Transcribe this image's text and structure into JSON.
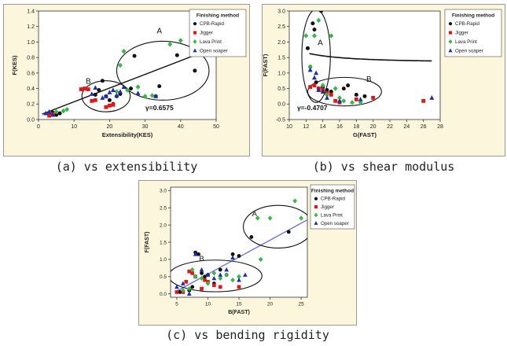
{
  "colors": {
    "panel_bg": "#fcf6dd",
    "plot_bg": "#ffffff",
    "cpb": "#111111",
    "jigger": "#dd1a1a",
    "lava": "#39b54a",
    "open": "#1f2fa8",
    "fit_line": "#111111",
    "fit_line_c": "#6f74d6"
  },
  "captions": [
    "(a) vs extensibility",
    "(b) vs shear modulus",
    "(c) vs bending rigidity"
  ],
  "legend": {
    "title": "Finishing method",
    "entries": [
      {
        "label": "CPB-Rapid",
        "color": "#111111",
        "marker": "circle"
      },
      {
        "label": "Jigger",
        "color": "#dd1a1a",
        "marker": "square"
      },
      {
        "label": "Lava Print",
        "color": "#39b54a",
        "marker": "diamond"
      },
      {
        "label": "Open soaper",
        "color": "#1f2fa8",
        "marker": "triangle"
      }
    ]
  },
  "chart_data": [
    {
      "type": "scatter",
      "xlabel": "Extensibility(KES)",
      "ylabel": "F(KES)",
      "xlim": [
        0,
        50
      ],
      "ylim": [
        0,
        1.4
      ],
      "xticks": [
        0,
        10,
        20,
        30,
        40,
        50
      ],
      "yticks": [
        0,
        0.2,
        0.4,
        0.6,
        0.8,
        1.0,
        1.2,
        1.4
      ],
      "ytick_labels": [
        "0.0",
        "0.2",
        "0.4",
        "0.6",
        "0.8",
        "1.0",
        "1.2",
        "1.4"
      ],
      "correlation_label": "γ=0.6575",
      "fit": {
        "kind": "linear",
        "x0": 1,
        "y0": 0.07,
        "x1": 48,
        "y1": 0.9
      },
      "groups": [
        {
          "label": "A",
          "cx": 35,
          "cy": 0.63,
          "rx": 13,
          "ry": 0.38,
          "lx": 34,
          "ly": 1.11
        },
        {
          "label": "B",
          "cx": 19,
          "cy": 0.3,
          "rx": 6.8,
          "ry": 0.2,
          "lx": 14,
          "ly": 0.46
        }
      ],
      "series": [
        {
          "name": "CPB-Rapid",
          "marker": "circle",
          "color": "#111111",
          "points": [
            [
              3,
              0.07
            ],
            [
              4,
              0.09
            ],
            [
              5,
              0.06
            ],
            [
              6,
              0.08
            ],
            [
              16,
              0.32
            ],
            [
              17,
              0.38
            ],
            [
              18,
              0.5
            ],
            [
              19,
              0.3
            ],
            [
              20,
              0.25
            ],
            [
              21,
              0.2
            ],
            [
              22,
              0.3
            ],
            [
              23,
              0.33
            ],
            [
              26,
              0.4
            ],
            [
              27,
              0.82
            ],
            [
              33,
              0.3
            ],
            [
              34,
              0.43
            ],
            [
              39,
              0.83
            ],
            [
              44,
              0.63
            ]
          ]
        },
        {
          "name": "Jigger",
          "marker": "square",
          "color": "#dd1a1a",
          "points": [
            [
              3,
              0.05
            ],
            [
              4,
              0.07
            ],
            [
              12,
              0.39
            ],
            [
              13,
              0.4
            ],
            [
              14,
              0.39
            ],
            [
              15,
              0.24
            ],
            [
              16,
              0.25
            ],
            [
              19,
              0.16
            ],
            [
              20,
              0.18
            ],
            [
              21,
              0.19
            ]
          ]
        },
        {
          "name": "Lava Print",
          "marker": "diamond",
          "color": "#39b54a",
          "points": [
            [
              5,
              0.1
            ],
            [
              7,
              0.11
            ],
            [
              8,
              0.13
            ],
            [
              22,
              0.36
            ],
            [
              23,
              0.7
            ],
            [
              24,
              0.88
            ],
            [
              25,
              0.38
            ],
            [
              28,
              0.42
            ],
            [
              30,
              0.3
            ],
            [
              32,
              0.31
            ],
            [
              37,
              0.97
            ],
            [
              40,
              1.02
            ],
            [
              43,
              0.85
            ]
          ]
        },
        {
          "name": "Open soaper",
          "marker": "triangle",
          "color": "#1f2fa8",
          "points": [
            [
              2,
              0.08
            ],
            [
              3,
              0.1
            ],
            [
              4,
              0.06
            ],
            [
              15,
              0.33
            ],
            [
              16,
              0.41
            ],
            [
              18,
              0.28
            ],
            [
              19,
              0.3
            ],
            [
              20,
              0.35
            ],
            [
              21,
              0.38
            ],
            [
              22,
              0.31
            ],
            [
              23,
              0.36
            ],
            [
              24,
              0.42
            ],
            [
              28,
              0.34
            ],
            [
              33,
              0.3
            ]
          ]
        }
      ]
    },
    {
      "type": "scatter",
      "xlabel": "G(FAST)",
      "ylabel": "F(FAST)",
      "xlim": [
        10,
        28
      ],
      "ylim": [
        -0.5,
        3.0
      ],
      "xticks": [
        10,
        12,
        14,
        16,
        18,
        20,
        22,
        24,
        26,
        28
      ],
      "yticks": [
        -0.5,
        0,
        0.5,
        1.0,
        1.5,
        2.0,
        2.5,
        3.0
      ],
      "ytick_labels": [
        "-0.5",
        "0.0",
        "0.5",
        "1.0",
        "1.5",
        "2.0",
        "2.5",
        "3.0"
      ],
      "correlation_label": "γ=-0.4707",
      "fit": {
        "kind": "power",
        "a": 1.5,
        "b": 150,
        "c": 2.5,
        "c0": -0.15,
        "x_from": 12.4,
        "x_to": 27
      },
      "groups": [
        {
          "label": "A",
          "cx": 13.2,
          "cy": 1.55,
          "rx": 1.7,
          "ry": 1.5,
          "lx": 13.7,
          "ly": 1.9
        },
        {
          "label": "B",
          "cx": 16.6,
          "cy": 0.4,
          "rx": 4.4,
          "ry": 0.46,
          "lx": 19.5,
          "ly": 0.72
        }
      ],
      "series": [
        {
          "name": "CPB-Rapid",
          "marker": "circle",
          "color": "#111111",
          "points": [
            [
              12.2,
              1.8
            ],
            [
              12.5,
              1.2
            ],
            [
              12.8,
              2.6
            ],
            [
              13.0,
              2.4
            ],
            [
              13.2,
              0.7
            ],
            [
              13.5,
              0.5
            ],
            [
              13.8,
              3.0
            ],
            [
              14.0,
              0.55
            ],
            [
              14.5,
              0.45
            ],
            [
              15.0,
              0.4
            ],
            [
              16.5,
              0.5
            ],
            [
              17.0,
              0.6
            ],
            [
              18.0,
              0.3
            ],
            [
              19.0,
              0.25
            ]
          ]
        },
        {
          "name": "Jigger",
          "marker": "square",
          "color": "#dd1a1a",
          "points": [
            [
              12.5,
              0.55
            ],
            [
              13.0,
              0.6
            ],
            [
              13.5,
              0.5
            ],
            [
              14.0,
              0.45
            ],
            [
              14.5,
              0.35
            ],
            [
              15.0,
              0.3
            ],
            [
              15.5,
              0.1
            ],
            [
              16.0,
              0.05
            ],
            [
              18.0,
              0.15
            ],
            [
              20.0,
              0.2
            ],
            [
              26.0,
              0.1
            ]
          ]
        },
        {
          "name": "Lava Print",
          "marker": "diamond",
          "color": "#39b54a",
          "points": [
            [
              12.0,
              2.2
            ],
            [
              12.5,
              1.2
            ],
            [
              13.0,
              2.2
            ],
            [
              13.5,
              2.7
            ],
            [
              14.0,
              0.6
            ],
            [
              14.5,
              0.3
            ],
            [
              15.0,
              2.2
            ],
            [
              15.5,
              0.5
            ],
            [
              16.0,
              0.2
            ],
            [
              16.5,
              0.1
            ],
            [
              17.5,
              0.05
            ],
            [
              18.5,
              0.05
            ]
          ]
        },
        {
          "name": "Open soaper",
          "marker": "triangle",
          "color": "#1f2fa8",
          "points": [
            [
              12.5,
              1.1
            ],
            [
              13.0,
              0.85
            ],
            [
              13.2,
              1.0
            ],
            [
              13.5,
              0.45
            ],
            [
              14.0,
              0.4
            ],
            [
              14.5,
              0.2
            ],
            [
              16.0,
              0.1
            ],
            [
              18.5,
              0.15
            ],
            [
              27.0,
              0.2
            ]
          ]
        }
      ]
    },
    {
      "type": "scatter",
      "xlabel": "B(FAST)",
      "ylabel": "F(FAST)",
      "xlim": [
        4,
        26
      ],
      "ylim": [
        -0.1,
        3.1
      ],
      "xticks": [
        5,
        10,
        15,
        20,
        25
      ],
      "yticks": [
        0,
        0.5,
        1.0,
        1.5,
        2.0,
        2.5,
        3.0
      ],
      "ytick_labels": [
        "0.0",
        "0.5",
        "1.0",
        "1.5",
        "2.0",
        "2.5",
        "3.0"
      ],
      "correlation_label": "",
      "fit": {
        "kind": "linear",
        "x0": 5,
        "y0": 0.08,
        "x1": 26,
        "y1": 2.15
      },
      "groups": [
        {
          "label": "A",
          "cx": 21.3,
          "cy": 1.95,
          "rx": 5.6,
          "ry": 0.62,
          "lx": 17.5,
          "ly": 2.25
        },
        {
          "label": "B",
          "cx": 11.2,
          "cy": 0.52,
          "rx": 7.5,
          "ry": 0.46,
          "lx": 9.0,
          "ly": 0.95
        }
      ],
      "series": [
        {
          "name": "CPB-Rapid",
          "marker": "circle",
          "color": "#111111",
          "points": [
            [
              5.5,
              0.05
            ],
            [
              7,
              0.1
            ],
            [
              7.5,
              0.2
            ],
            [
              8,
              1.2
            ],
            [
              8.5,
              1.15
            ],
            [
              9,
              0.6
            ],
            [
              9.5,
              0.5
            ],
            [
              10,
              0.55
            ],
            [
              11,
              0.3
            ],
            [
              12,
              0.7
            ],
            [
              13,
              0.55
            ],
            [
              14,
              1.15
            ],
            [
              15,
              1.1
            ],
            [
              17,
              1.65
            ],
            [
              23,
              1.8
            ]
          ]
        },
        {
          "name": "Jigger",
          "marker": "square",
          "color": "#dd1a1a",
          "points": [
            [
              5,
              0.05
            ],
            [
              6,
              0.05
            ],
            [
              6.5,
              0.35
            ],
            [
              7,
              0.65
            ],
            [
              7.5,
              0.6
            ],
            [
              8,
              0.5
            ],
            [
              9,
              0.15
            ],
            [
              9.5,
              0.4
            ],
            [
              10,
              0.35
            ],
            [
              11,
              0.25
            ],
            [
              12,
              0.2
            ],
            [
              15,
              0.2
            ]
          ]
        },
        {
          "name": "Lava Print",
          "marker": "diamond",
          "color": "#39b54a",
          "points": [
            [
              6,
              0.1
            ],
            [
              7,
              0.15
            ],
            [
              7.5,
              0.7
            ],
            [
              8,
              0.5
            ],
            [
              9,
              0.45
            ],
            [
              10,
              0.3
            ],
            [
              11,
              0.6
            ],
            [
              12,
              0.45
            ],
            [
              13,
              0.55
            ],
            [
              14,
              0.4
            ],
            [
              15,
              0.5
            ],
            [
              18,
              2.2
            ],
            [
              18.5,
              1.0
            ],
            [
              20,
              2.2
            ],
            [
              24,
              2.7
            ],
            [
              25,
              2.2
            ]
          ]
        },
        {
          "name": "Open soaper",
          "marker": "triangle",
          "color": "#1f2fa8",
          "points": [
            [
              5,
              0.2
            ],
            [
              6,
              0.3
            ],
            [
              7,
              0.0
            ],
            [
              8,
              1.15
            ],
            [
              9,
              0.7
            ],
            [
              10,
              0.55
            ],
            [
              11,
              0.45
            ],
            [
              12,
              0.55
            ],
            [
              13,
              0.7
            ],
            [
              14,
              1.05
            ],
            [
              15,
              0.4
            ],
            [
              16,
              0.55
            ]
          ]
        }
      ]
    }
  ]
}
